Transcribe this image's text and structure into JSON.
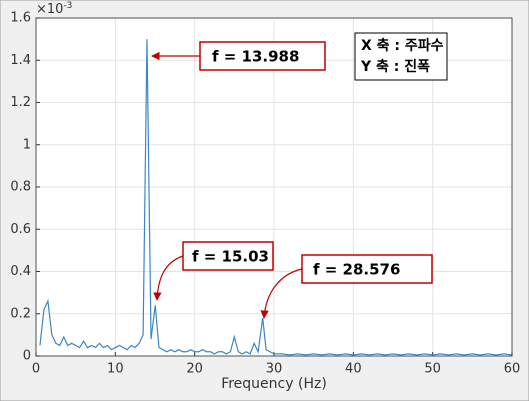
{
  "chart_data": {
    "type": "line",
    "xlabel": "Frequency (Hz)",
    "y_multiplier": {
      "base": "×10",
      "exponent": "-3"
    },
    "xlim": [
      0,
      60
    ],
    "xticks": [
      0,
      10,
      20,
      30,
      40,
      50,
      60
    ],
    "ylim": [
      0,
      1.6
    ],
    "yticks": [
      0,
      0.2,
      0.4,
      0.6,
      0.8,
      1,
      1.2,
      1.4,
      1.6
    ],
    "grid": true,
    "x": [
      0.5,
      1,
      1.5,
      2,
      2.5,
      3,
      3.5,
      4,
      4.5,
      5,
      5.5,
      6,
      6.5,
      7,
      7.5,
      8,
      8.5,
      9,
      9.5,
      10,
      10.5,
      11,
      11.5,
      12,
      12.5,
      13,
      13.5,
      13.988,
      14.5,
      15.03,
      15.5,
      16,
      16.5,
      17,
      17.5,
      18,
      18.5,
      19,
      19.5,
      20,
      20.5,
      21,
      21.5,
      22,
      22.5,
      23,
      23.5,
      24,
      24.5,
      25,
      25.5,
      26,
      26.5,
      27,
      27.5,
      28,
      28.576,
      29,
      29.5,
      30,
      31,
      32,
      33,
      34,
      35,
      36,
      37,
      38,
      39,
      40,
      41,
      42,
      43,
      44,
      45,
      46,
      47,
      48,
      49,
      50,
      51,
      52,
      53,
      54,
      55,
      56,
      57,
      58,
      59,
      60
    ],
    "series": [
      {
        "color": "#3a86c8",
        "values": [
          0.05,
          0.22,
          0.26,
          0.1,
          0.06,
          0.05,
          0.09,
          0.05,
          0.06,
          0.05,
          0.04,
          0.07,
          0.04,
          0.05,
          0.04,
          0.06,
          0.04,
          0.05,
          0.03,
          0.04,
          0.05,
          0.04,
          0.03,
          0.05,
          0.04,
          0.06,
          0.1,
          1.5,
          0.08,
          0.24,
          0.04,
          0.03,
          0.02,
          0.03,
          0.02,
          0.03,
          0.02,
          0.02,
          0.03,
          0.02,
          0.02,
          0.03,
          0.02,
          0.02,
          0.01,
          0.02,
          0.02,
          0.01,
          0.02,
          0.09,
          0.02,
          0.01,
          0.02,
          0.01,
          0.06,
          0.02,
          0.18,
          0.03,
          0.02,
          0.01,
          0.01,
          0.005,
          0.01,
          0.005,
          0.01,
          0.005,
          0.01,
          0.005,
          0.01,
          0.005,
          0.01,
          0.005,
          0.01,
          0.005,
          0.01,
          0.005,
          0.01,
          0.005,
          0.01,
          0.005,
          0.01,
          0.005,
          0.01,
          0.005,
          0.01,
          0.005,
          0.01,
          0.005,
          0.01,
          0.005
        ]
      }
    ],
    "annotations": [
      "f = 13.988",
      "f = 15.03",
      "f = 28.576"
    ],
    "axis_note": [
      "X 축 : 주파수",
      "Y 축 : 진폭"
    ]
  }
}
